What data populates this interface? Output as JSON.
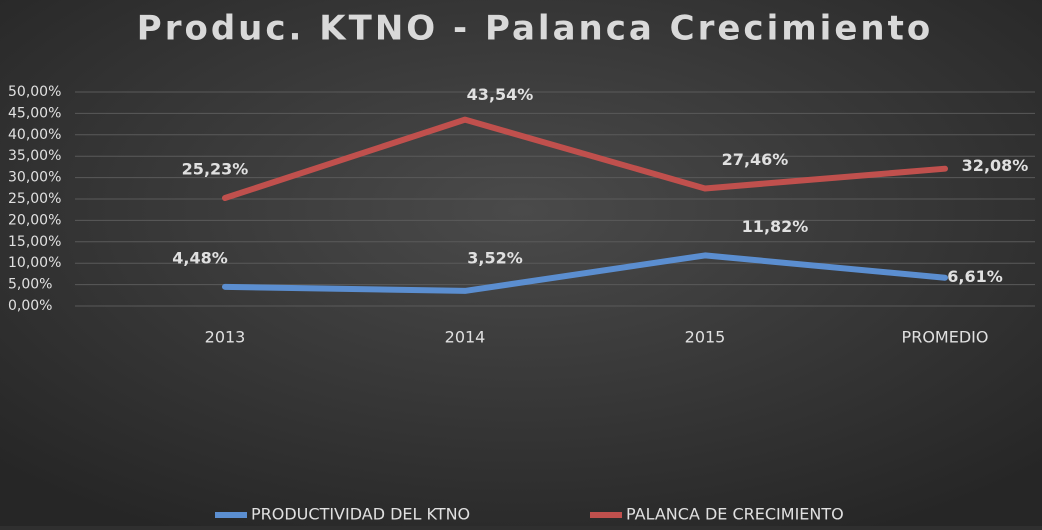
{
  "chart_data": {
    "type": "line",
    "title": "Produc. KTNO - Palanca Crecimiento",
    "categories": [
      "2013",
      "2014",
      "2015",
      "PROMEDIO"
    ],
    "series": [
      {
        "name": "PRODUCTIVIDAD DEL KTNO",
        "color": "#5b8ed0",
        "values": [
          4.48,
          3.52,
          11.82,
          6.61
        ],
        "value_labels": [
          "4,48%",
          "3,52%",
          "11,82%",
          "6,61%"
        ]
      },
      {
        "name": "PALANCA DE CRECIMIENTO",
        "color": "#c0504d",
        "values": [
          25.23,
          43.54,
          27.46,
          32.08
        ],
        "value_labels": [
          "25,23%",
          "43,54%",
          "27,46%",
          "32,08%"
        ]
      }
    ],
    "ylim": [
      0,
      50
    ],
    "yticks": [
      {
        "value": 0,
        "label": "0,00%"
      },
      {
        "value": 5,
        "label": "5,00%"
      },
      {
        "value": 10,
        "label": "10,00%"
      },
      {
        "value": 15,
        "label": "15,00%"
      },
      {
        "value": 20,
        "label": "20,00%"
      },
      {
        "value": 25,
        "label": "25,00%"
      },
      {
        "value": 30,
        "label": "30,00%"
      },
      {
        "value": 35,
        "label": "35,00%"
      },
      {
        "value": 40,
        "label": "40,00%"
      },
      {
        "value": 45,
        "label": "45,00%"
      },
      {
        "value": 50,
        "label": "50,00%"
      }
    ],
    "grid": true,
    "legend": "bottom"
  }
}
